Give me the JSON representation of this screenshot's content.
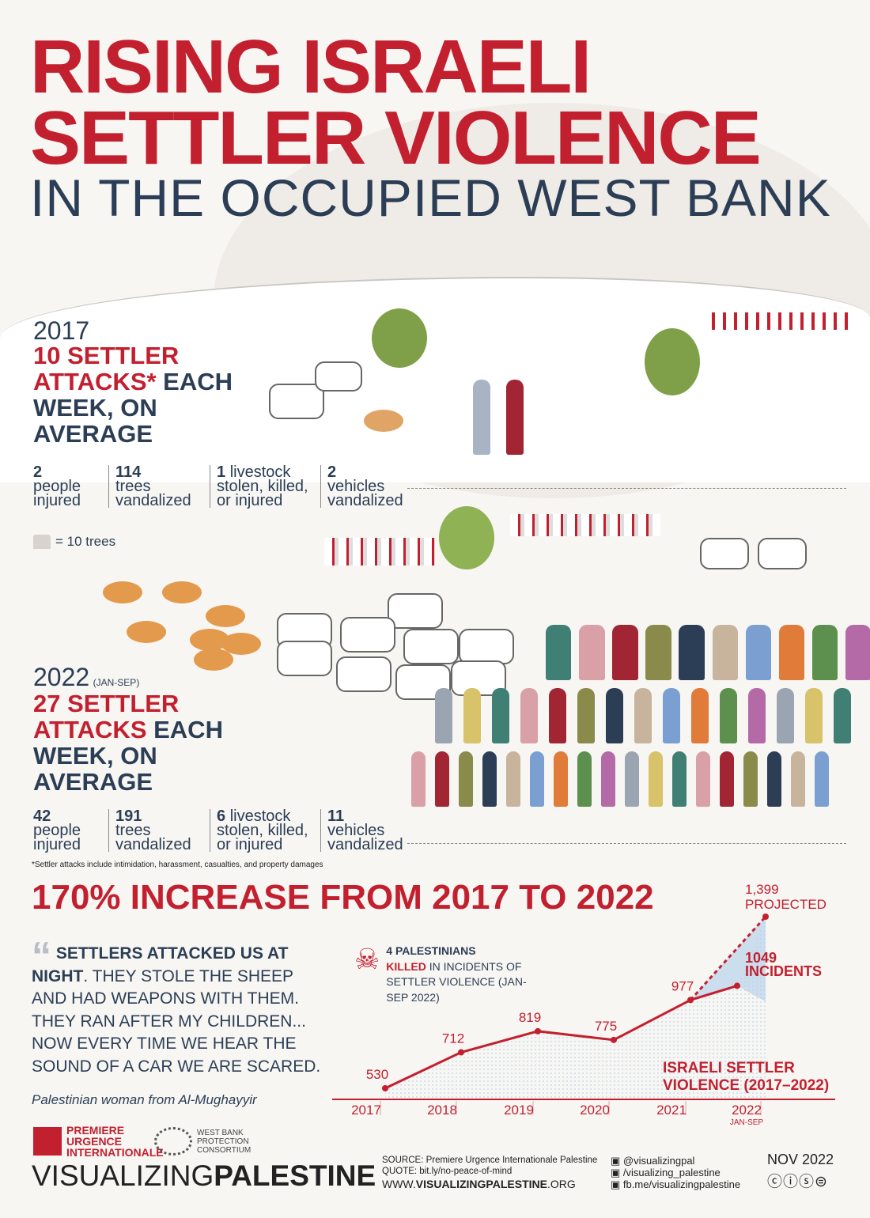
{
  "title": {
    "line1": "RISING ISRAELI",
    "line2": "SETTLER VIOLENCE",
    "line3": "IN THE OCCUPIED WEST BANK"
  },
  "y2017": {
    "year": "2017",
    "headline_red": "10 SETTLER ATTACKS*",
    "headline_navy": " EACH WEEK, ON AVERAGE",
    "stats": [
      {
        "num": "2",
        "text": "people injured"
      },
      {
        "num": "114",
        "text": "trees vandalized"
      },
      {
        "num": "1",
        "text": "livestock stolen, killed, or injured"
      },
      {
        "num": "2",
        "text": "vehicles vandalized"
      }
    ]
  },
  "legend_trees": "= 10 trees",
  "y2022": {
    "year": "2022",
    "period": "(JAN-SEP)",
    "headline_red": "27 SETTLER ATTACKS",
    "headline_navy": " EACH WEEK, ON AVERAGE",
    "stats": [
      {
        "num": "42",
        "text": "people injured"
      },
      {
        "num": "191",
        "text": "trees vandalized"
      },
      {
        "num": "6",
        "text": "livestock stolen, killed, or injured"
      },
      {
        "num": "11",
        "text": "vehicles vandalized"
      }
    ]
  },
  "footnote": "*Settler attacks include intimidation, harassment, casualties, and property damages",
  "increase_heading": "170% INCREASE FROM 2017 TO 2022",
  "quote": {
    "bold": "SETTLERS ATTACKED US AT NIGHT",
    "text": ". THEY STOLE THE SHEEP AND HAD WEAPONS WITH THEM. THEY RAN AFTER MY CHILDREN... NOW EVERY TIME WE HEAR THE SOUND OF A CAR WE ARE SCARED.",
    "attribution": "Palestinian woman from Al-Mughayyir"
  },
  "killed": {
    "bold1": "4 PALESTINIANS",
    "bold2": "KILLED",
    "text": " IN INCIDENTS OF SETTLER VIOLENCE (JAN-SEP 2022)"
  },
  "chart_data": {
    "type": "line",
    "title": "ISRAELI SETTLER VIOLENCE (2017–2022)",
    "categories": [
      "2017",
      "2018",
      "2019",
      "2020",
      "2021",
      "2022"
    ],
    "sublabel_2022": "JAN-SEP",
    "values": [
      530,
      712,
      819,
      775,
      977,
      1049
    ],
    "value_labels": [
      "530",
      "712",
      "819",
      "775",
      "977",
      "1049 INCIDENTS"
    ],
    "projected": {
      "value": 1399,
      "label": "1,399",
      "note": "PROJECTED"
    },
    "colors": {
      "line": "#c3202f",
      "fill": "#b9d3ea"
    }
  },
  "footer": {
    "org1": "PREMIERE URGENCE INTERNATIONALE",
    "org2": "WEST BANK PROTECTION CONSORTIUM",
    "brand_light": "VISUALIZING",
    "brand_bold": "PALESTINE",
    "source": "SOURCE: Premiere Urgence Internationale Palestine",
    "quote_src": "QUOTE: bit.ly/no-peace-of-mind",
    "site_pre": "WWW.",
    "site_bold": "VISUALIZINGPALESTINE",
    "site_post": ".ORG",
    "twitter": "@visualizingpal",
    "instagram": "/visualizing_palestine",
    "facebook": "fb.me/visualizingpalestine",
    "date": "NOV 2022",
    "license": "cc by nc nd"
  }
}
